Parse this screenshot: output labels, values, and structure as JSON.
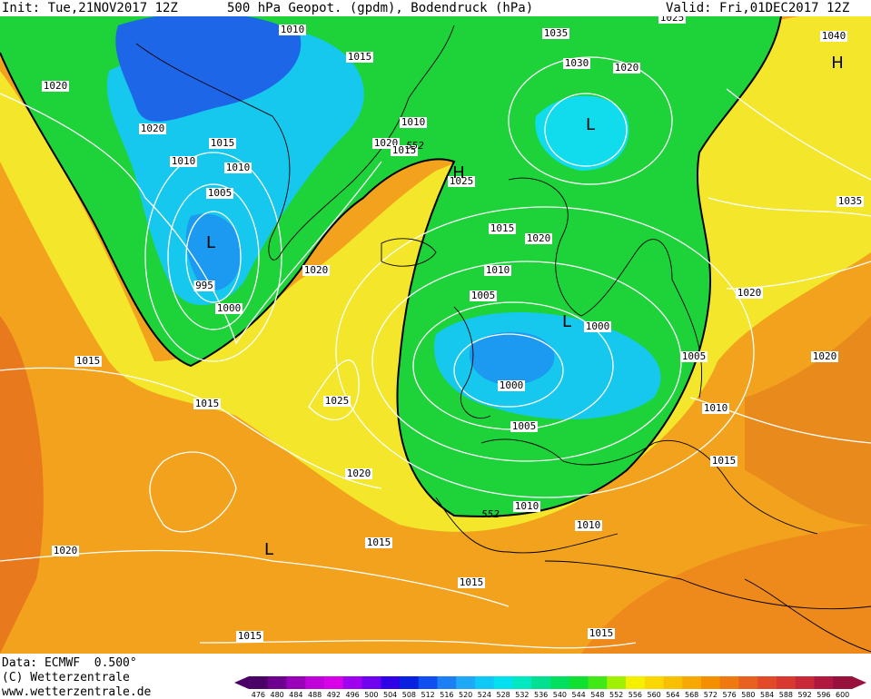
{
  "header": {
    "init": "Init: Tue,21NOV2017 12Z",
    "title": "500 hPa Geopot. (gpdm), Bodendruck (hPa)",
    "valid": "Valid: Fri,01DEC2017 12Z"
  },
  "footer": {
    "data": "Data: ECMWF  0.500°",
    "copyright": "(C) Wetterzentrale",
    "url": "www.wetterzentrale.de"
  },
  "map": {
    "pressure_labels": [
      "1010",
      "1015",
      "1035",
      "1025",
      "1040",
      "1020",
      "1030",
      "1020",
      "1020",
      "1010",
      "1015",
      "1010",
      "1020",
      "1015",
      "1025",
      "1015",
      "1010",
      "1005",
      "1035",
      "995",
      "1000",
      "1020",
      "1020",
      "1010",
      "1020",
      "1005",
      "1000",
      "1005",
      "1025",
      "1020",
      "1000",
      "1010",
      "1015",
      "1005",
      "1010",
      "1015",
      "1020",
      "1010",
      "1020",
      "1015",
      "1015",
      "1015",
      "1015",
      "1015"
    ],
    "geopot_labels": [
      "552",
      "552"
    ],
    "centers": [
      "L",
      "L",
      "H",
      "L",
      "L",
      "H"
    ]
  },
  "legend": {
    "values": [
      "476",
      "480",
      "484",
      "488",
      "492",
      "496",
      "500",
      "504",
      "508",
      "512",
      "516",
      "520",
      "524",
      "528",
      "532",
      "536",
      "540",
      "544",
      "548",
      "552",
      "556",
      "560",
      "564",
      "568",
      "572",
      "576",
      "580",
      "584",
      "588",
      "592",
      "596",
      "600"
    ],
    "colors": [
      "#4b0068",
      "#6e0090",
      "#9a00b8",
      "#c000d8",
      "#d800e8",
      "#a000f0",
      "#7000f0",
      "#3000e8",
      "#0a20e0",
      "#1050f0",
      "#1c80f4",
      "#20a8f8",
      "#10c8f8",
      "#00e0f0",
      "#00e8c0",
      "#00e090",
      "#00e060",
      "#10e030",
      "#40e818",
      "#a0f000",
      "#f4f000",
      "#f8d800",
      "#f8c000",
      "#f8a800",
      "#f49000",
      "#f07810",
      "#e86020",
      "#e04a28",
      "#d83830",
      "#c82838",
      "#b01840",
      "#98103c"
    ]
  }
}
